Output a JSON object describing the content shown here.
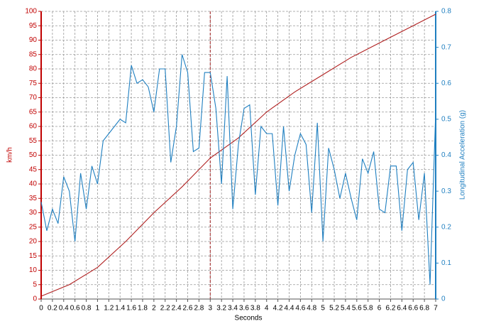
{
  "chart_data": {
    "type": "line",
    "xlabel": "Seconds",
    "ylabel": "km/h",
    "y2label": "Longitudinal Acceleration (g)",
    "xlim": [
      0,
      7
    ],
    "xticks": [
      0,
      0.2,
      0.4,
      0.6,
      0.8,
      1,
      1.2,
      1.4,
      1.6,
      1.8,
      2,
      2.2,
      2.4,
      2.6,
      2.8,
      3,
      3.2,
      3.4,
      3.6,
      3.8,
      4,
      4.2,
      4.4,
      4.6,
      4.8,
      5,
      5.2,
      5.4,
      5.6,
      5.8,
      6,
      6.2,
      6.4,
      6.6,
      6.8,
      7
    ],
    "ylim": [
      0,
      100
    ],
    "yticks": [
      0,
      5,
      10,
      15,
      20,
      25,
      30,
      35,
      40,
      45,
      50,
      55,
      60,
      65,
      70,
      75,
      80,
      85,
      90,
      95,
      100
    ],
    "y2lim": [
      0,
      0.8
    ],
    "y2ticks": [
      0,
      0.1,
      0.2,
      0.3,
      0.4,
      0.5,
      0.6,
      0.7,
      0.8
    ],
    "grid": true,
    "cursor_x": 3,
    "y_color": "#c00000",
    "y2_color": "#1f7fc0",
    "series": [
      {
        "color": "#b02020",
        "x": [
          0,
          0.5,
          1,
          1.5,
          2,
          2.5,
          3,
          3.5,
          4,
          4.5,
          5,
          5.5,
          6,
          6.5,
          7
        ],
        "values": [
          1,
          5,
          11,
          20,
          30,
          39,
          49,
          56,
          65,
          72,
          78,
          84,
          89,
          94,
          99
        ]
      },
      {
        "color": "#1f7fc0",
        "axis": "y2",
        "x": [
          0,
          0.1,
          0.2,
          0.3,
          0.4,
          0.5,
          0.6,
          0.7,
          0.8,
          0.9,
          1,
          1.1,
          1.2,
          1.3,
          1.4,
          1.5,
          1.6,
          1.7,
          1.8,
          1.9,
          2,
          2.1,
          2.2,
          2.3,
          2.4,
          2.5,
          2.6,
          2.7,
          2.8,
          2.9,
          3,
          3.1,
          3.2,
          3.3,
          3.4,
          3.5,
          3.6,
          3.7,
          3.8,
          3.9,
          4,
          4.1,
          4.2,
          4.3,
          4.4,
          4.5,
          4.6,
          4.7,
          4.8,
          4.9,
          5,
          5.1,
          5.2,
          5.3,
          5.4,
          5.5,
          5.6,
          5.7,
          5.8,
          5.9,
          6,
          6.1,
          6.2,
          6.3,
          6.4,
          6.5,
          6.6,
          6.7,
          6.8,
          6.9,
          7
        ],
        "values": [
          0.27,
          0.19,
          0.25,
          0.21,
          0.34,
          0.3,
          0.16,
          0.35,
          0.25,
          0.37,
          0.32,
          0.44,
          0.46,
          0.48,
          0.5,
          0.49,
          0.65,
          0.6,
          0.61,
          0.59,
          0.52,
          0.64,
          0.64,
          0.38,
          0.48,
          0.68,
          0.63,
          0.41,
          0.42,
          0.63,
          0.63,
          0.53,
          0.32,
          0.62,
          0.25,
          0.43,
          0.53,
          0.54,
          0.29,
          0.48,
          0.46,
          0.46,
          0.26,
          0.48,
          0.3,
          0.4,
          0.46,
          0.43,
          0.24,
          0.49,
          0.16,
          0.42,
          0.36,
          0.28,
          0.35,
          0.28,
          0.22,
          0.39,
          0.35,
          0.41,
          0.25,
          0.24,
          0.37,
          0.37,
          0.19,
          0.36,
          0.38,
          0.22,
          0.35,
          0.04,
          0.52
        ]
      }
    ]
  }
}
